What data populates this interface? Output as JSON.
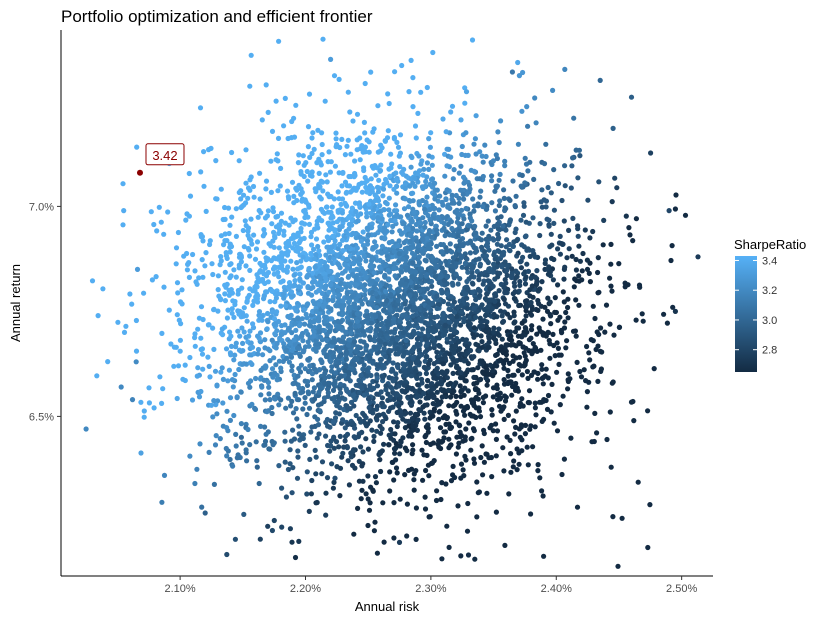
{
  "chart_data": {
    "type": "scatter",
    "title": "Portfolio optimization and efficient frontier",
    "xlabel": "Annual risk",
    "ylabel": "Annual return",
    "xlim": [
      2.005,
      2.525
    ],
    "ylim": [
      6.12,
      7.42
    ],
    "x_ticks": [
      2.1,
      2.2,
      2.3,
      2.4,
      2.5
    ],
    "x_tick_labels": [
      "2.10%",
      "2.20%",
      "2.30%",
      "2.40%",
      "2.50%"
    ],
    "y_ticks": [
      6.5,
      7.0
    ],
    "y_tick_labels": [
      "6.5%",
      "7.0%"
    ],
    "grid": false,
    "legend": {
      "title": "SharpeRatio",
      "placement": "right",
      "type": "colorbar",
      "range": [
        2.65,
        3.43
      ],
      "ticks": [
        2.8,
        3.0,
        3.2,
        3.4
      ],
      "tick_labels": [
        "2.8",
        "3.0",
        "3.2",
        "3.4"
      ],
      "low_color": "#132B43",
      "high_color": "#56B1F7"
    },
    "colors": {
      "low": "#132B43",
      "high": "#56B1F7",
      "highlight": "#8B0000"
    },
    "annotation": {
      "label": "3.42",
      "x": 2.068,
      "y": 7.08
    },
    "points": {
      "count": 5000,
      "note_risk_center": 2.27,
      "risk_sd": 0.075,
      "return_center": 6.76,
      "return_sd": 0.2,
      "sharpe_range": [
        2.65,
        3.43
      ],
      "samples": [
        {
          "risk": 2.025,
          "return": 6.47,
          "sharpe": 3.19
        },
        {
          "risk": 2.053,
          "return": 6.57,
          "sharpe": 3.2
        },
        {
          "risk": 2.055,
          "return": 6.99,
          "sharpe": 3.4
        },
        {
          "risk": 2.062,
          "return": 6.54,
          "sharpe": 3.17
        },
        {
          "risk": 2.065,
          "return": 6.63,
          "sharpe": 3.21
        },
        {
          "risk": 2.066,
          "return": 6.85,
          "sharpe": 3.31
        },
        {
          "risk": 2.12,
          "return": 6.27,
          "sharpe": 2.96
        },
        {
          "risk": 2.22,
          "return": 7.35,
          "sharpe": 3.31
        },
        {
          "risk": 2.365,
          "return": 7.32,
          "sharpe": 3.1
        },
        {
          "risk": 2.435,
          "return": 7.3,
          "sharpe": 3.0
        },
        {
          "risk": 2.46,
          "return": 7.26,
          "sharpe": 2.95
        },
        {
          "risk": 2.49,
          "return": 6.99,
          "sharpe": 2.81
        },
        {
          "risk": 2.513,
          "return": 6.88,
          "sharpe": 2.74
        },
        {
          "risk": 2.495,
          "return": 6.75,
          "sharpe": 2.7
        },
        {
          "risk": 2.275,
          "return": 6.2,
          "sharpe": 2.74
        },
        {
          "risk": 2.33,
          "return": 6.17,
          "sharpe": 2.67
        },
        {
          "risk": 2.335,
          "return": 6.16,
          "sharpe": 2.66
        }
      ]
    }
  }
}
